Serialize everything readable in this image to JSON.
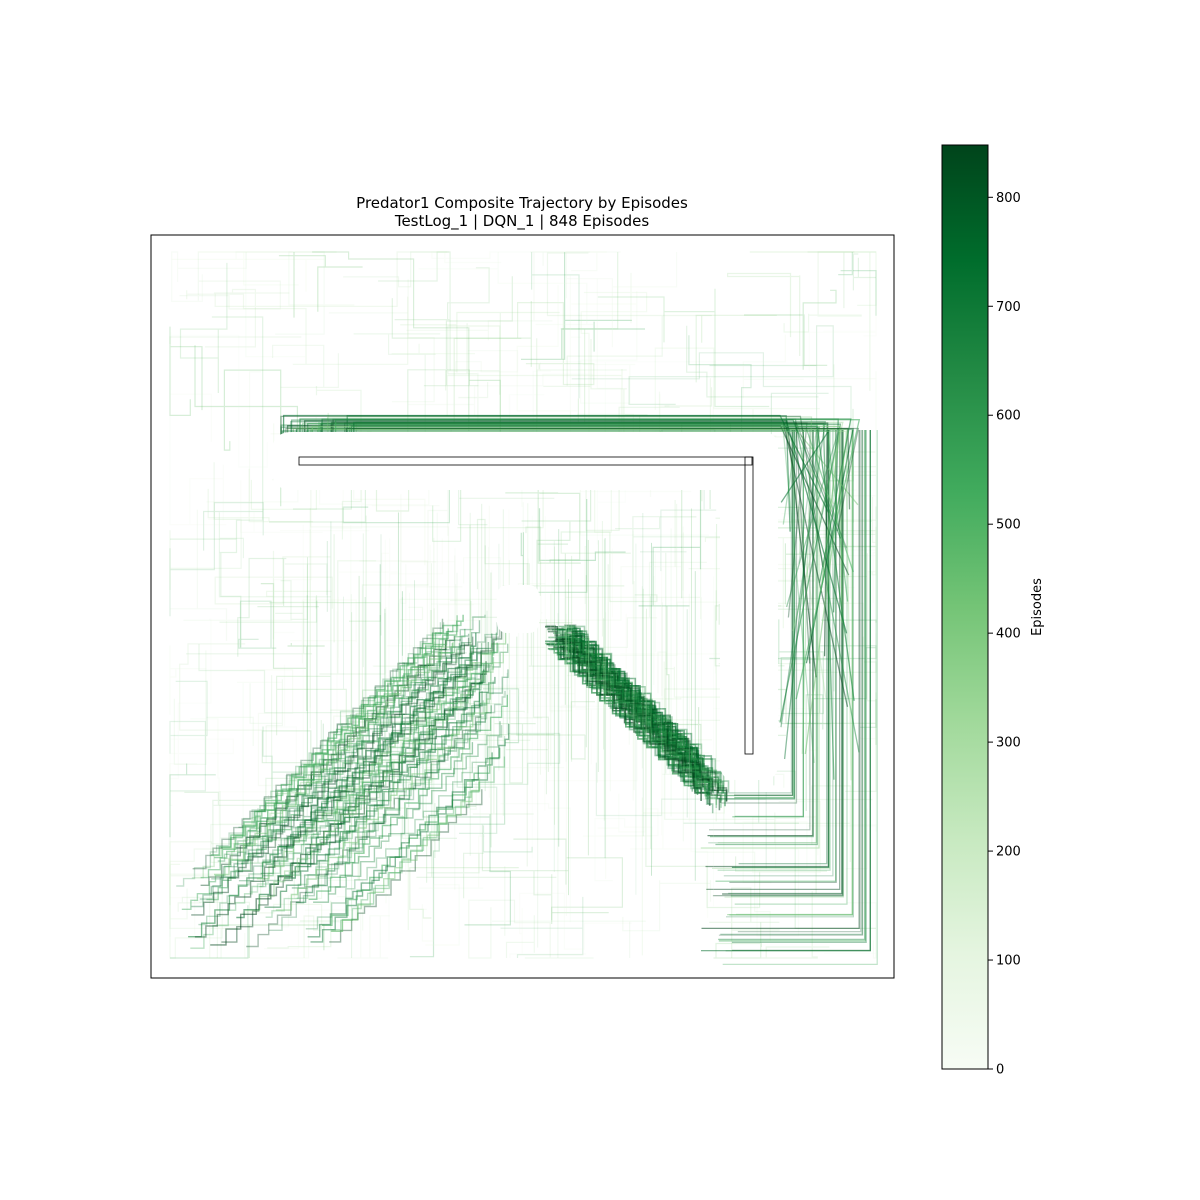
{
  "chart_data": {
    "type": "heatmap",
    "title": "Predator1 Composite Trajectory by Episodes",
    "subtitle": "TestLog_1 | DQN_1 | 848 Episodes",
    "colorbar": {
      "label": "Episodes",
      "range": [
        0,
        848
      ],
      "ticks": [
        "0",
        "100",
        "200",
        "300",
        "400",
        "500",
        "600",
        "700",
        "800"
      ],
      "colormap": "Greens",
      "color_low": "#f7fcf5",
      "color_high": "#00441b"
    },
    "axes_visible": false,
    "grid": false,
    "legend": "none"
  }
}
